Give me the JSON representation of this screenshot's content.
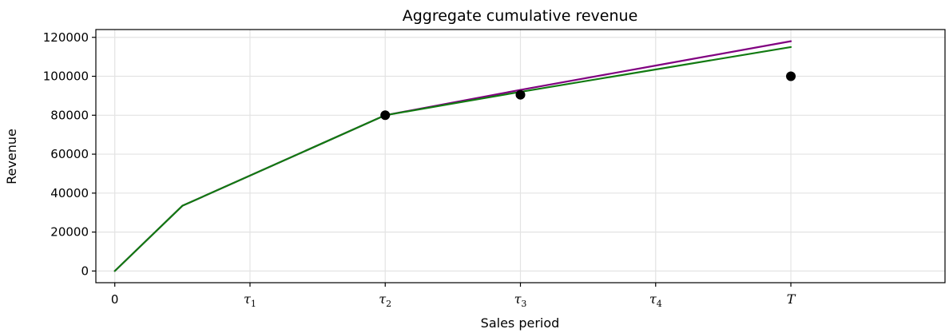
{
  "chart_data": {
    "type": "line",
    "title": "Aggregate cumulative revenue",
    "xlabel": "Sales period",
    "ylabel": "Revenue",
    "xlim": [
      -0.14,
      6.14
    ],
    "ylim": [
      -6000,
      124000
    ],
    "grid": true,
    "x_ticks": [
      {
        "x": 0,
        "base": "0",
        "sub": ""
      },
      {
        "x": 1,
        "base": "τ",
        "sub": "1"
      },
      {
        "x": 2,
        "base": "τ",
        "sub": "2"
      },
      {
        "x": 3,
        "base": "τ",
        "sub": "3"
      },
      {
        "x": 4,
        "base": "τ",
        "sub": "4"
      },
      {
        "x": 5,
        "base": "T",
        "sub": ""
      }
    ],
    "y_ticks": [
      0,
      20000,
      40000,
      60000,
      80000,
      100000,
      120000
    ],
    "series": [
      {
        "kind": "line",
        "color": "#800080",
        "points": [
          [
            0,
            0
          ],
          [
            0.5,
            33500
          ],
          [
            2,
            80000
          ],
          [
            3,
            93000
          ],
          [
            4,
            105500
          ],
          [
            5,
            118000
          ]
        ]
      },
      {
        "kind": "line",
        "color": "#117a11",
        "points": [
          [
            0,
            0
          ],
          [
            0.5,
            33500
          ],
          [
            2,
            80000
          ],
          [
            3,
            92000
          ],
          [
            4,
            103500
          ],
          [
            5,
            115000
          ]
        ]
      },
      {
        "kind": "scatter",
        "color": "#000000",
        "points": [
          [
            2,
            80000
          ],
          [
            3,
            90500
          ],
          [
            5,
            100000
          ]
        ]
      }
    ]
  }
}
